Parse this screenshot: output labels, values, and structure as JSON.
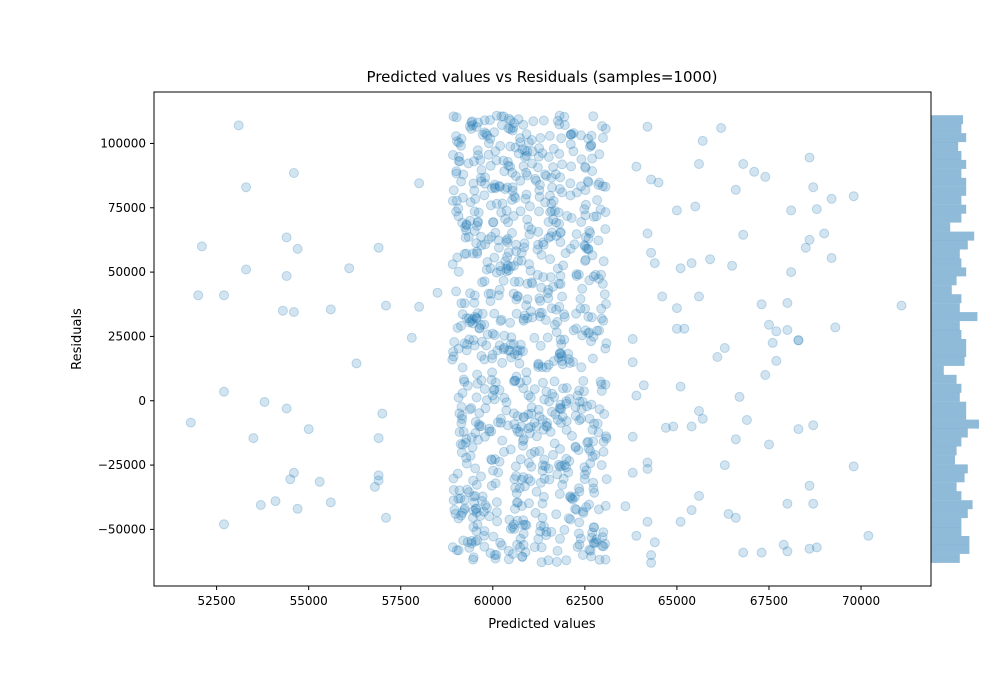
{
  "chart_data": {
    "type": "scatter",
    "title": "Predicted values vs Residuals (samples=1000)",
    "xlabel": "Predicted values",
    "ylabel": "Residuals",
    "xlim": [
      50800,
      71900
    ],
    "ylim": [
      -72000,
      120000
    ],
    "xticks": [
      52500,
      55000,
      57500,
      60000,
      62500,
      65000,
      67500,
      70000
    ],
    "xtick_labels": [
      "52500",
      "55000",
      "57500",
      "60000",
      "62500",
      "65000",
      "67500",
      "70000"
    ],
    "yticks": [
      -50000,
      -25000,
      0,
      25000,
      50000,
      75000,
      100000
    ],
    "ytick_labels": [
      "−50000",
      "−25000",
      "0",
      "25000",
      "50000",
      "75000",
      "100000"
    ],
    "point_color": "#1f77b4",
    "point_alpha": 0.2,
    "hist_color": "#1f77b4",
    "hist_alpha": 0.5,
    "grid": false,
    "sample_count": 1000,
    "cluster_x_range": [
      58900,
      63100
    ],
    "cluster_point_count": 900,
    "y_range": [
      -63000,
      111000
    ],
    "points": [
      [
        53100,
        107000
      ],
      [
        54600,
        88500
      ],
      [
        53300,
        83000
      ],
      [
        52100,
        60000
      ],
      [
        54400,
        63500
      ],
      [
        54700,
        59000
      ],
      [
        56900,
        59500
      ],
      [
        53300,
        51000
      ],
      [
        56100,
        51500
      ],
      [
        54400,
        48500
      ],
      [
        52000,
        41000
      ],
      [
        52700,
        41000
      ],
      [
        54300,
        35000
      ],
      [
        54600,
        34500
      ],
      [
        55600,
        35500
      ],
      [
        57100,
        37000
      ],
      [
        57800,
        24500
      ],
      [
        58000,
        36500
      ],
      [
        56300,
        14500
      ],
      [
        52700,
        3500
      ],
      [
        53800,
        -500
      ],
      [
        54400,
        -3000
      ],
      [
        57000,
        -5000
      ],
      [
        51800,
        -8500
      ],
      [
        55000,
        -11000
      ],
      [
        53500,
        -14500
      ],
      [
        56900,
        -14500
      ],
      [
        54600,
        -28000
      ],
      [
        54500,
        -30500
      ],
      [
        55300,
        -31500
      ],
      [
        56900,
        -29000
      ],
      [
        56900,
        -31000
      ],
      [
        56800,
        -33500
      ],
      [
        54100,
        -39000
      ],
      [
        53700,
        -40500
      ],
      [
        55600,
        -39500
      ],
      [
        54700,
        -42000
      ],
      [
        57100,
        -45500
      ],
      [
        52700,
        -48000
      ],
      [
        58000,
        84500
      ],
      [
        58500,
        42000
      ],
      [
        64200,
        106500
      ],
      [
        64300,
        86000
      ],
      [
        64500,
        84800
      ],
      [
        64200,
        65000
      ],
      [
        64300,
        57500
      ],
      [
        64400,
        53500
      ],
      [
        63900,
        91000
      ],
      [
        64600,
        40500
      ],
      [
        63800,
        24000
      ],
      [
        64100,
        6000
      ],
      [
        63800,
        15000
      ],
      [
        63900,
        2000
      ],
      [
        63800,
        -14000
      ],
      [
        64200,
        -24000
      ],
      [
        64200,
        -26500
      ],
      [
        63800,
        -28000
      ],
      [
        63600,
        -41000
      ],
      [
        64200,
        -47000
      ],
      [
        64400,
        -55000
      ],
      [
        64300,
        -60000
      ],
      [
        64300,
        -63000
      ],
      [
        63900,
        -52500
      ],
      [
        64700,
        -10500
      ],
      [
        64900,
        -10000
      ],
      [
        65000,
        28000
      ],
      [
        65200,
        28000
      ],
      [
        65100,
        5500
      ],
      [
        65100,
        -47000
      ],
      [
        65400,
        -42500
      ],
      [
        65100,
        51500
      ],
      [
        65400,
        53500
      ],
      [
        65500,
        75500
      ],
      [
        65000,
        74000
      ],
      [
        65000,
        36000
      ],
      [
        65600,
        92000
      ],
      [
        65700,
        101000
      ],
      [
        65900,
        55000
      ],
      [
        65600,
        40500
      ],
      [
        65400,
        -10000
      ],
      [
        65600,
        -4000
      ],
      [
        65700,
        -7000
      ],
      [
        65600,
        -37000
      ],
      [
        66200,
        106000
      ],
      [
        66300,
        20500
      ],
      [
        66100,
        17000
      ],
      [
        66300,
        -25000
      ],
      [
        66400,
        -44000
      ],
      [
        66600,
        -45500
      ],
      [
        66500,
        52500
      ],
      [
        66600,
        82000
      ],
      [
        66800,
        92000
      ],
      [
        67100,
        89000
      ],
      [
        66800,
        64500
      ],
      [
        67400,
        87000
      ],
      [
        67300,
        37500
      ],
      [
        67500,
        29500
      ],
      [
        67400,
        10000
      ],
      [
        66700,
        1500
      ],
      [
        66600,
        -15000
      ],
      [
        66900,
        -7500
      ],
      [
        67500,
        -17000
      ],
      [
        66800,
        -59000
      ],
      [
        67300,
        -59000
      ],
      [
        67700,
        15500
      ],
      [
        67700,
        27000
      ],
      [
        67600,
        22500
      ],
      [
        68000,
        38000
      ],
      [
        68000,
        27500
      ],
      [
        68100,
        74000
      ],
      [
        68100,
        50000
      ],
      [
        68300,
        23500
      ],
      [
        68300,
        23500
      ],
      [
        68000,
        -40000
      ],
      [
        67900,
        -56000
      ],
      [
        68000,
        -58500
      ],
      [
        68300,
        -11000
      ],
      [
        68500,
        59500
      ],
      [
        68600,
        62500
      ],
      [
        68600,
        94500
      ],
      [
        68700,
        83000
      ],
      [
        68800,
        74500
      ],
      [
        69000,
        65000
      ],
      [
        69200,
        78500
      ],
      [
        69200,
        55500
      ],
      [
        69300,
        28500
      ],
      [
        69800,
        79500
      ],
      [
        68600,
        -33000
      ],
      [
        68700,
        -40000
      ],
      [
        68700,
        -9500
      ],
      [
        68600,
        -57500
      ],
      [
        68800,
        -57000
      ],
      [
        69800,
        -25500
      ],
      [
        70200,
        -52500
      ],
      [
        71100,
        37000
      ]
    ]
  }
}
